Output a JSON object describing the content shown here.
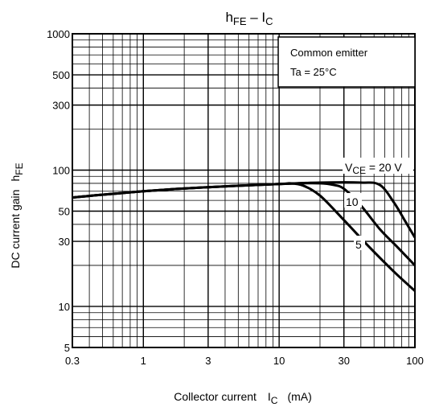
{
  "chart_data": {
    "type": "line",
    "title_main": "h",
    "title_main_sub": "FE",
    "title_sep": " – I",
    "title_sep_sub": "C",
    "xlabel": "Collector current",
    "xlabel_symbol": "I",
    "xlabel_symbol_sub": "C",
    "xlabel_unit": "(mA)",
    "ylabel": "DC current gain",
    "ylabel_symbol": "h",
    "ylabel_symbol_sub": "FE",
    "x_scale": "log",
    "y_scale": "log",
    "xlim": [
      0.3,
      100
    ],
    "ylim": [
      5,
      1000
    ],
    "grid": true,
    "x_ticks": [
      {
        "v": 0.3,
        "t": "0.3"
      },
      {
        "v": 1,
        "t": "1"
      },
      {
        "v": 3,
        "t": "3"
      },
      {
        "v": 10,
        "t": "10"
      },
      {
        "v": 30,
        "t": "30"
      },
      {
        "v": 100,
        "t": "100"
      }
    ],
    "y_ticks": [
      {
        "v": 5,
        "t": "5"
      },
      {
        "v": 10,
        "t": "10"
      },
      {
        "v": 30,
        "t": "30"
      },
      {
        "v": 50,
        "t": "50"
      },
      {
        "v": 100,
        "t": "100"
      },
      {
        "v": 300,
        "t": "300"
      },
      {
        "v": 500,
        "t": "500"
      },
      {
        "v": 1000,
        "t": "1000"
      }
    ],
    "legend_box": {
      "line1": "Common emitter",
      "line2": "Ta = 25°C",
      "placement": "top-right"
    },
    "series": [
      {
        "name": "20",
        "label_prefix": "V",
        "label_sub": "CE",
        "label_suffix": " = 20 V",
        "x": [
          0.3,
          1,
          3,
          10,
          20,
          40,
          55,
          70,
          85,
          100
        ],
        "y": [
          63,
          70,
          75,
          79,
          81,
          81,
          78,
          58,
          42,
          32
        ]
      },
      {
        "name": "10",
        "label_text": "10",
        "x": [
          0.3,
          1,
          3,
          10,
          14,
          20,
          25,
          30,
          40,
          55,
          75,
          100
        ],
        "y": [
          63,
          70,
          75,
          79,
          80,
          80,
          78,
          73,
          55,
          37,
          27,
          20
        ]
      },
      {
        "name": "5",
        "label_text": "5",
        "x": [
          0.3,
          1,
          3,
          10,
          12,
          15,
          20,
          30,
          45,
          70,
          100
        ],
        "y": [
          63,
          70,
          75,
          79,
          80,
          77,
          65,
          43,
          28,
          18,
          13
        ]
      }
    ]
  }
}
